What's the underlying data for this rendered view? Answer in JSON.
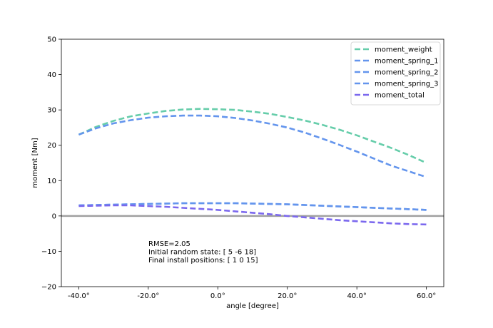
{
  "chart_data": {
    "type": "line",
    "xlabel": "angle [degree]",
    "ylabel": "moment [Nm]",
    "xlim": [
      -45,
      65
    ],
    "ylim": [
      -20,
      50
    ],
    "x_ticks": [
      -40,
      -20,
      0,
      20,
      40,
      60
    ],
    "x_tick_labels": [
      "-40.0°",
      "-20.0°",
      "0.0°",
      "20.0°",
      "40.0°",
      "60.0°"
    ],
    "y_ticks": [
      -20,
      -10,
      0,
      10,
      20,
      30,
      40,
      50
    ],
    "y_tick_labels": [
      "−20",
      "−10",
      "0",
      "10",
      "20",
      "30",
      "40",
      "50"
    ],
    "grid": false,
    "legend_position": "top-right",
    "x": [
      -40,
      -35,
      -30,
      -25,
      -20,
      -15,
      -10,
      -5,
      0,
      5,
      10,
      15,
      20,
      25,
      30,
      35,
      40,
      45,
      50,
      55,
      60
    ],
    "series": [
      {
        "name": "moment_weight",
        "color": "#66cdaa",
        "style": "dashed",
        "values": [
          23.0,
          25.2,
          26.9,
          28.2,
          29.0,
          29.7,
          30.1,
          30.3,
          30.2,
          30.0,
          29.5,
          28.9,
          28.0,
          27.0,
          25.8,
          24.4,
          22.8,
          21.0,
          19.2,
          17.2,
          15.0
        ]
      },
      {
        "name": "moment_spring_1",
        "color": "#6495ed",
        "style": "dashed",
        "values": [
          3.0,
          3.1,
          3.2,
          3.3,
          3.4,
          3.5,
          3.6,
          3.6,
          3.6,
          3.6,
          3.5,
          3.4,
          3.3,
          3.1,
          2.9,
          2.7,
          2.5,
          2.3,
          2.1,
          1.9,
          1.7
        ]
      },
      {
        "name": "moment_spring_2",
        "color": "#6495ed",
        "style": "dashed",
        "values": [
          3.0,
          3.1,
          3.2,
          3.3,
          3.4,
          3.5,
          3.6,
          3.6,
          3.6,
          3.6,
          3.5,
          3.4,
          3.3,
          3.1,
          2.9,
          2.7,
          2.5,
          2.3,
          2.1,
          1.9,
          1.7
        ]
      },
      {
        "name": "moment_spring_3",
        "color": "#6495ed",
        "style": "dashed",
        "values": [
          23.0,
          24.8,
          26.2,
          27.1,
          27.8,
          28.2,
          28.4,
          28.4,
          28.2,
          27.7,
          27.0,
          26.1,
          25.0,
          23.6,
          21.9,
          20.1,
          18.2,
          16.2,
          14.2,
          12.6,
          11.0
        ]
      },
      {
        "name": "moment_total",
        "color": "#7b68ee",
        "style": "dashed",
        "values": [
          2.8,
          2.9,
          3.0,
          3.0,
          2.8,
          2.6,
          2.3,
          2.0,
          1.7,
          1.3,
          0.9,
          0.5,
          0.0,
          -0.4,
          -0.8,
          -1.2,
          -1.5,
          -1.8,
          -2.1,
          -2.3,
          -2.4
        ]
      }
    ],
    "zero_line": {
      "y": 0,
      "color": "#a0a0a0"
    },
    "annotation_lines": [
      "RMSE=2.05",
      "Initial random state: [ 5 -6 18]",
      "Final install positions: [ 1  0 15]"
    ]
  }
}
